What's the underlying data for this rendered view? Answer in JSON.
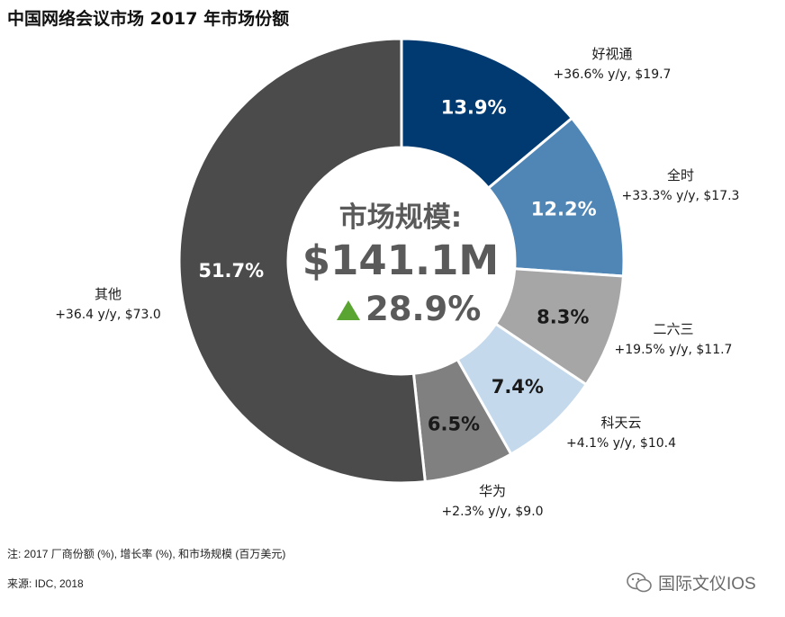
{
  "title": "中国网络会议市场 2017 年市场份额",
  "footnote": "注: 2017 厂商份额 (%), 增长率 (%), 和市场规模 (百万美元)",
  "source": "来源: IDC, 2018",
  "watermark": "国际文仪IOS",
  "center": {
    "label": "市场规模:",
    "value": "$141.1M",
    "growth": "28.9%",
    "growth_arrow_color": "#5aa532"
  },
  "chart_data": {
    "type": "pie",
    "donut": true,
    "start": "12 o'clock",
    "direction": "clockwise",
    "slices": [
      {
        "name": "好视通",
        "share": 13.9,
        "label": "13.9%",
        "growth_text": "+36.6% y/y, $19.7",
        "revenue": 19.7,
        "growth": 36.6,
        "color": "#003a70",
        "label_color": "#ffffff"
      },
      {
        "name": "全时",
        "share": 12.2,
        "label": "12.2%",
        "growth_text": "+33.3% y/y, $17.3",
        "revenue": 17.3,
        "growth": 33.3,
        "color": "#4f86b6",
        "label_color": "#ffffff"
      },
      {
        "name": "二六三",
        "share": 8.3,
        "label": "8.3%",
        "growth_text": "+19.5% y/y, $11.7",
        "revenue": 11.7,
        "growth": 19.5,
        "color": "#a6a6a6",
        "label_color": "#1a1a1a"
      },
      {
        "name": "科天云",
        "share": 7.4,
        "label": "7.4%",
        "growth_text": "+4.1% y/y, $10.4",
        "revenue": 10.4,
        "growth": 4.1,
        "color": "#c4d9ec",
        "label_color": "#1a1a1a"
      },
      {
        "name": "华为",
        "share": 6.5,
        "label": "6.5%",
        "growth_text": "+2.3% y/y, $9.0",
        "revenue": 9.0,
        "growth": 2.3,
        "color": "#808080",
        "label_color": "#1a1a1a"
      },
      {
        "name": "其他",
        "share": 51.7,
        "label": "51.7%",
        "growth_text": "+36.4 y/y, $73.0",
        "revenue": 73.0,
        "growth": 36.4,
        "color": "#4b4b4b",
        "label_color": "#ffffff"
      }
    ]
  }
}
